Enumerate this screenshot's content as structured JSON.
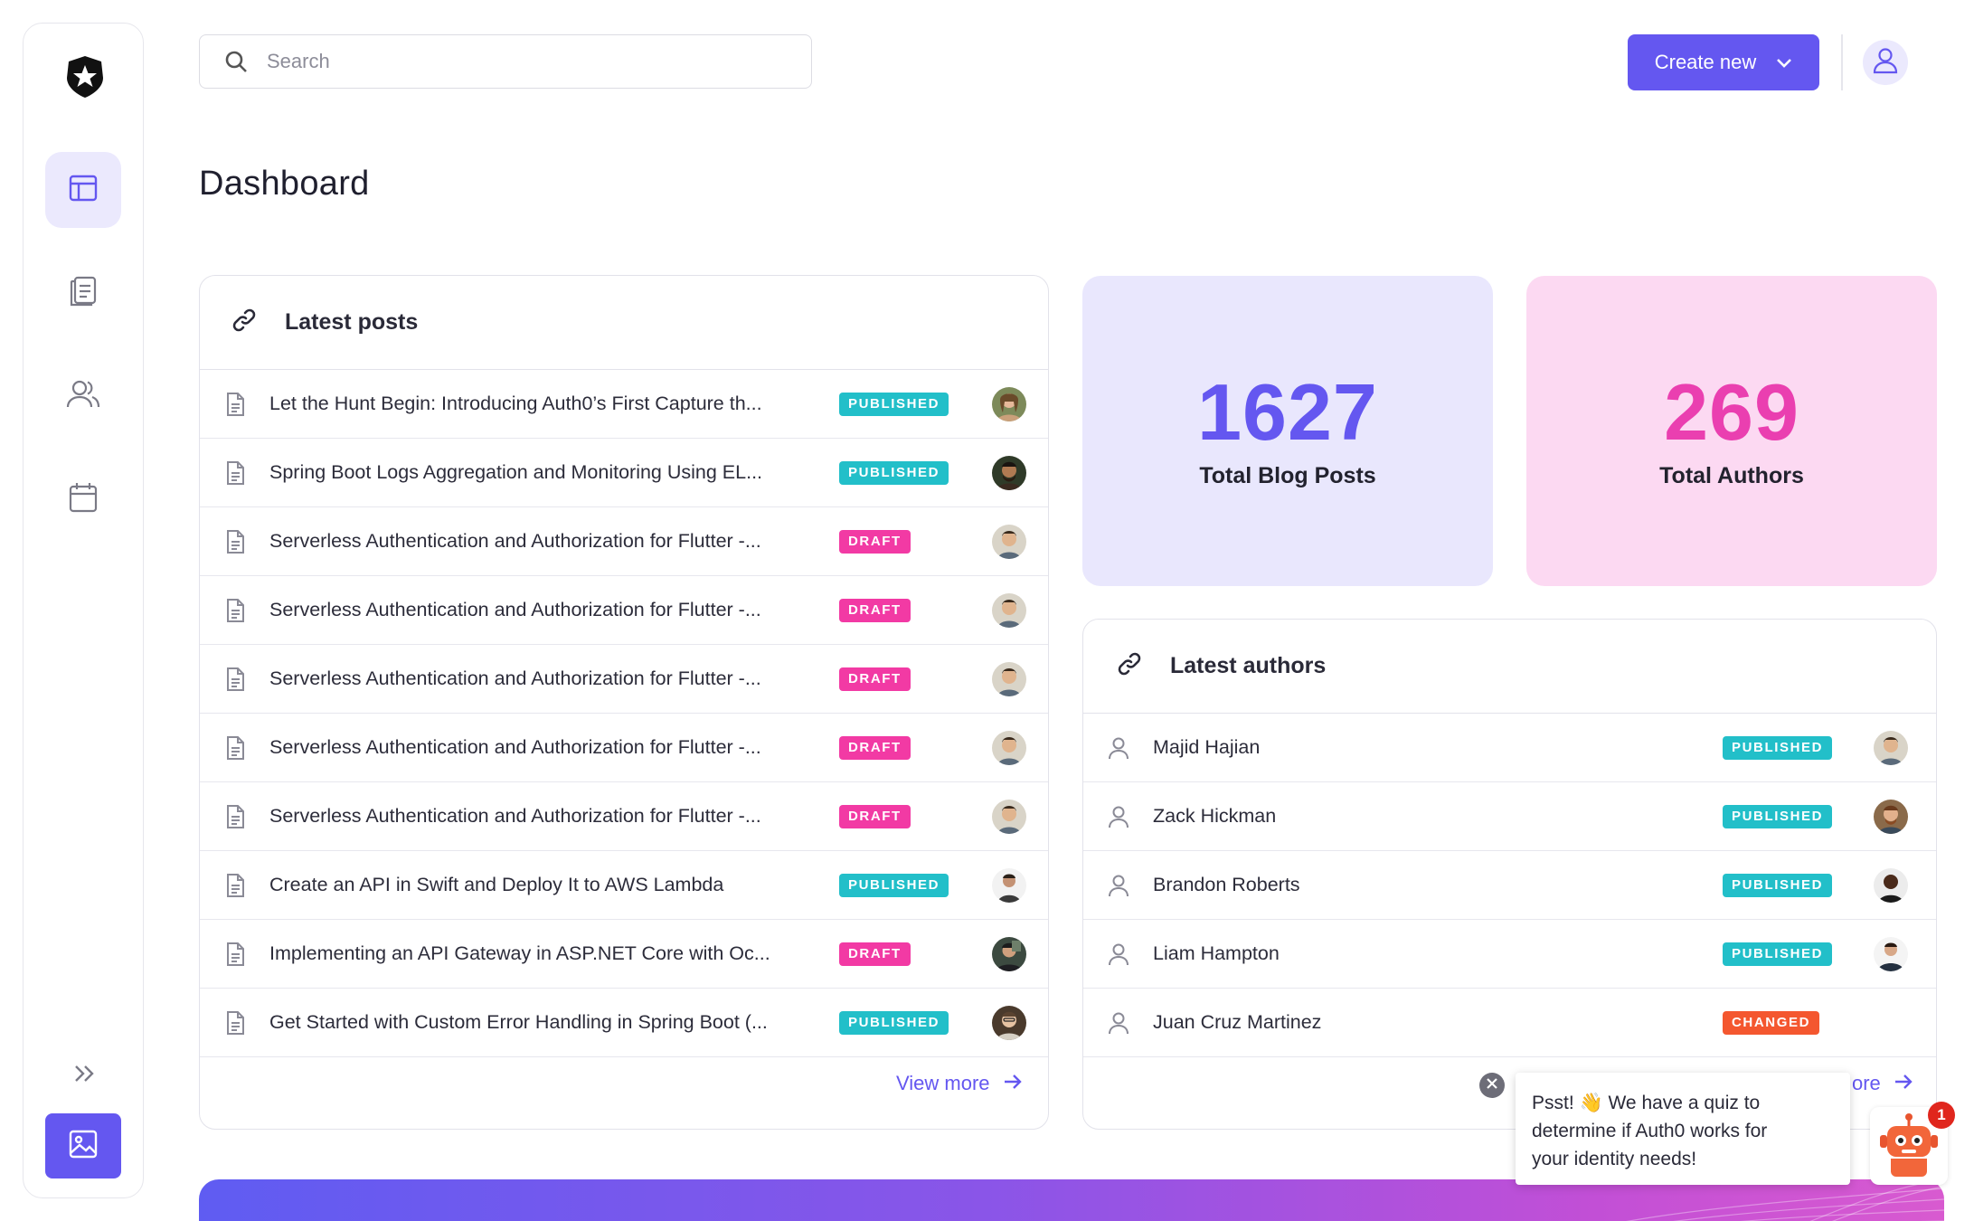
{
  "search": {
    "placeholder": "Search"
  },
  "header": {
    "create_label": "Create new"
  },
  "page": {
    "title": "Dashboard"
  },
  "latest_posts": {
    "title": "Latest posts",
    "view_more": "View more",
    "rows": [
      {
        "title": "Let the Hunt Begin: Introducing Auth0’s First Capture th...",
        "status": "PUBLISHED"
      },
      {
        "title": "Spring Boot Logs Aggregation and Monitoring Using EL...",
        "status": "PUBLISHED"
      },
      {
        "title": "Serverless Authentication and Authorization for Flutter -...",
        "status": "DRAFT"
      },
      {
        "title": "Serverless Authentication and Authorization for Flutter -...",
        "status": "DRAFT"
      },
      {
        "title": "Serverless Authentication and Authorization for Flutter -...",
        "status": "DRAFT"
      },
      {
        "title": "Serverless Authentication and Authorization for Flutter -...",
        "status": "DRAFT"
      },
      {
        "title": "Serverless Authentication and Authorization for Flutter -...",
        "status": "DRAFT"
      },
      {
        "title": "Create an API in Swift and Deploy It to AWS Lambda",
        "status": "PUBLISHED"
      },
      {
        "title": "Implementing an API Gateway in ASP.NET Core with Oc...",
        "status": "DRAFT"
      },
      {
        "title": "Get Started with Custom Error Handling in Spring Boot (...",
        "status": "PUBLISHED"
      }
    ]
  },
  "stats": {
    "blog_posts": {
      "value": "1627",
      "label": "Total Blog Posts",
      "color": "#6457f0",
      "bg": "#e9e7fd"
    },
    "authors": {
      "value": "269",
      "label": "Total Authors",
      "color": "#ea3fb0",
      "bg": "#fcd9f2"
    }
  },
  "latest_authors": {
    "title": "Latest authors",
    "view_more_partial": "ore",
    "rows": [
      {
        "name": "Majid Hajian",
        "status": "PUBLISHED"
      },
      {
        "name": "Zack Hickman",
        "status": "PUBLISHED"
      },
      {
        "name": "Brandon Roberts",
        "status": "PUBLISHED"
      },
      {
        "name": "Liam Hampton",
        "status": "PUBLISHED"
      },
      {
        "name": "Juan Cruz Martinez",
        "status": "CHANGED"
      }
    ]
  },
  "popup": {
    "line1": "Psst! 👋 We have a quiz to",
    "line2": "determine if Auth0 works for",
    "line3": "your identity needs!",
    "badge_count": "1"
  },
  "colors": {
    "accent": "#6457f0",
    "published": "#22bfc9",
    "draft": "#f23aa4",
    "changed": "#f4572f"
  },
  "icons": [
    "auth0-logo-icon",
    "dashboard-icon",
    "posts-icon",
    "users-icon",
    "calendar-icon",
    "expand-icon",
    "image-icon",
    "search-icon",
    "chevron-down-icon",
    "user-avatar-icon",
    "link-icon",
    "document-icon",
    "person-icon",
    "arrow-right-icon",
    "close-icon",
    "robot-icon"
  ]
}
